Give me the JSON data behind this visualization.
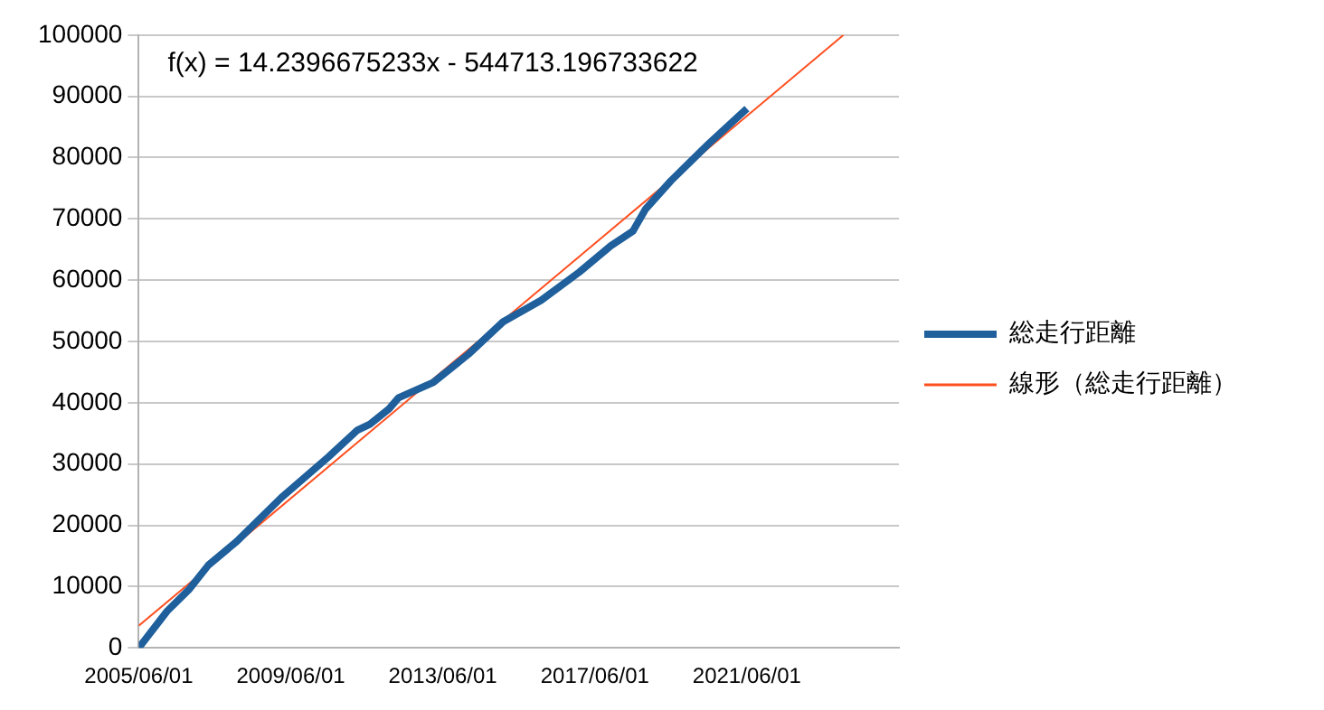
{
  "chart_data": {
    "type": "line",
    "xlim": [
      "2005-06-01",
      "2025-06-01"
    ],
    "xticks": [
      {
        "value": "2005-06-01",
        "label": "2005/06/01"
      },
      {
        "value": "2009-06-01",
        "label": "2009/06/01"
      },
      {
        "value": "2013-06-01",
        "label": "2013/06/01"
      },
      {
        "value": "2017-06-01",
        "label": "2017/06/01"
      },
      {
        "value": "2021-06-01",
        "label": "2021/06/01"
      }
    ],
    "ylim": [
      0,
      100000
    ],
    "yticks": [
      0,
      10000,
      20000,
      30000,
      40000,
      50000,
      60000,
      70000,
      80000,
      90000,
      100000
    ],
    "grid": "y",
    "legend": "right",
    "marker": "none",
    "annotations": [
      "f(x) = 14.2396675233x - 544713.196733622"
    ],
    "series": [
      {
        "name": "総走行距離",
        "color": "#1f5f9b",
        "x": [
          "2005-06-01",
          "2006-03-01",
          "2006-10-01",
          "2007-04-01",
          "2008-01-01",
          "2009-03-01",
          "2010-06-01",
          "2011-03-01",
          "2011-07-01",
          "2012-01-01",
          "2012-04-01",
          "2013-03-01",
          "2014-02-01",
          "2015-01-01",
          "2016-01-01",
          "2017-01-01",
          "2017-11-01",
          "2018-06-01",
          "2018-10-01",
          "2019-06-01",
          "2020-06-01",
          "2021-06-01"
        ],
        "values": [
          0,
          6000,
          9600,
          13500,
          17400,
          24500,
          31200,
          35500,
          36500,
          39000,
          40800,
          43300,
          47900,
          53200,
          56700,
          61300,
          65600,
          68000,
          71600,
          76200,
          82300,
          88000
        ]
      },
      {
        "name": "線形（総走行距離）",
        "color": "#ff4f1f",
        "type": "line",
        "x": [
          "2005-06-01",
          "2023-12-16"
        ],
        "values": [
          3600,
          100000
        ]
      }
    ]
  }
}
